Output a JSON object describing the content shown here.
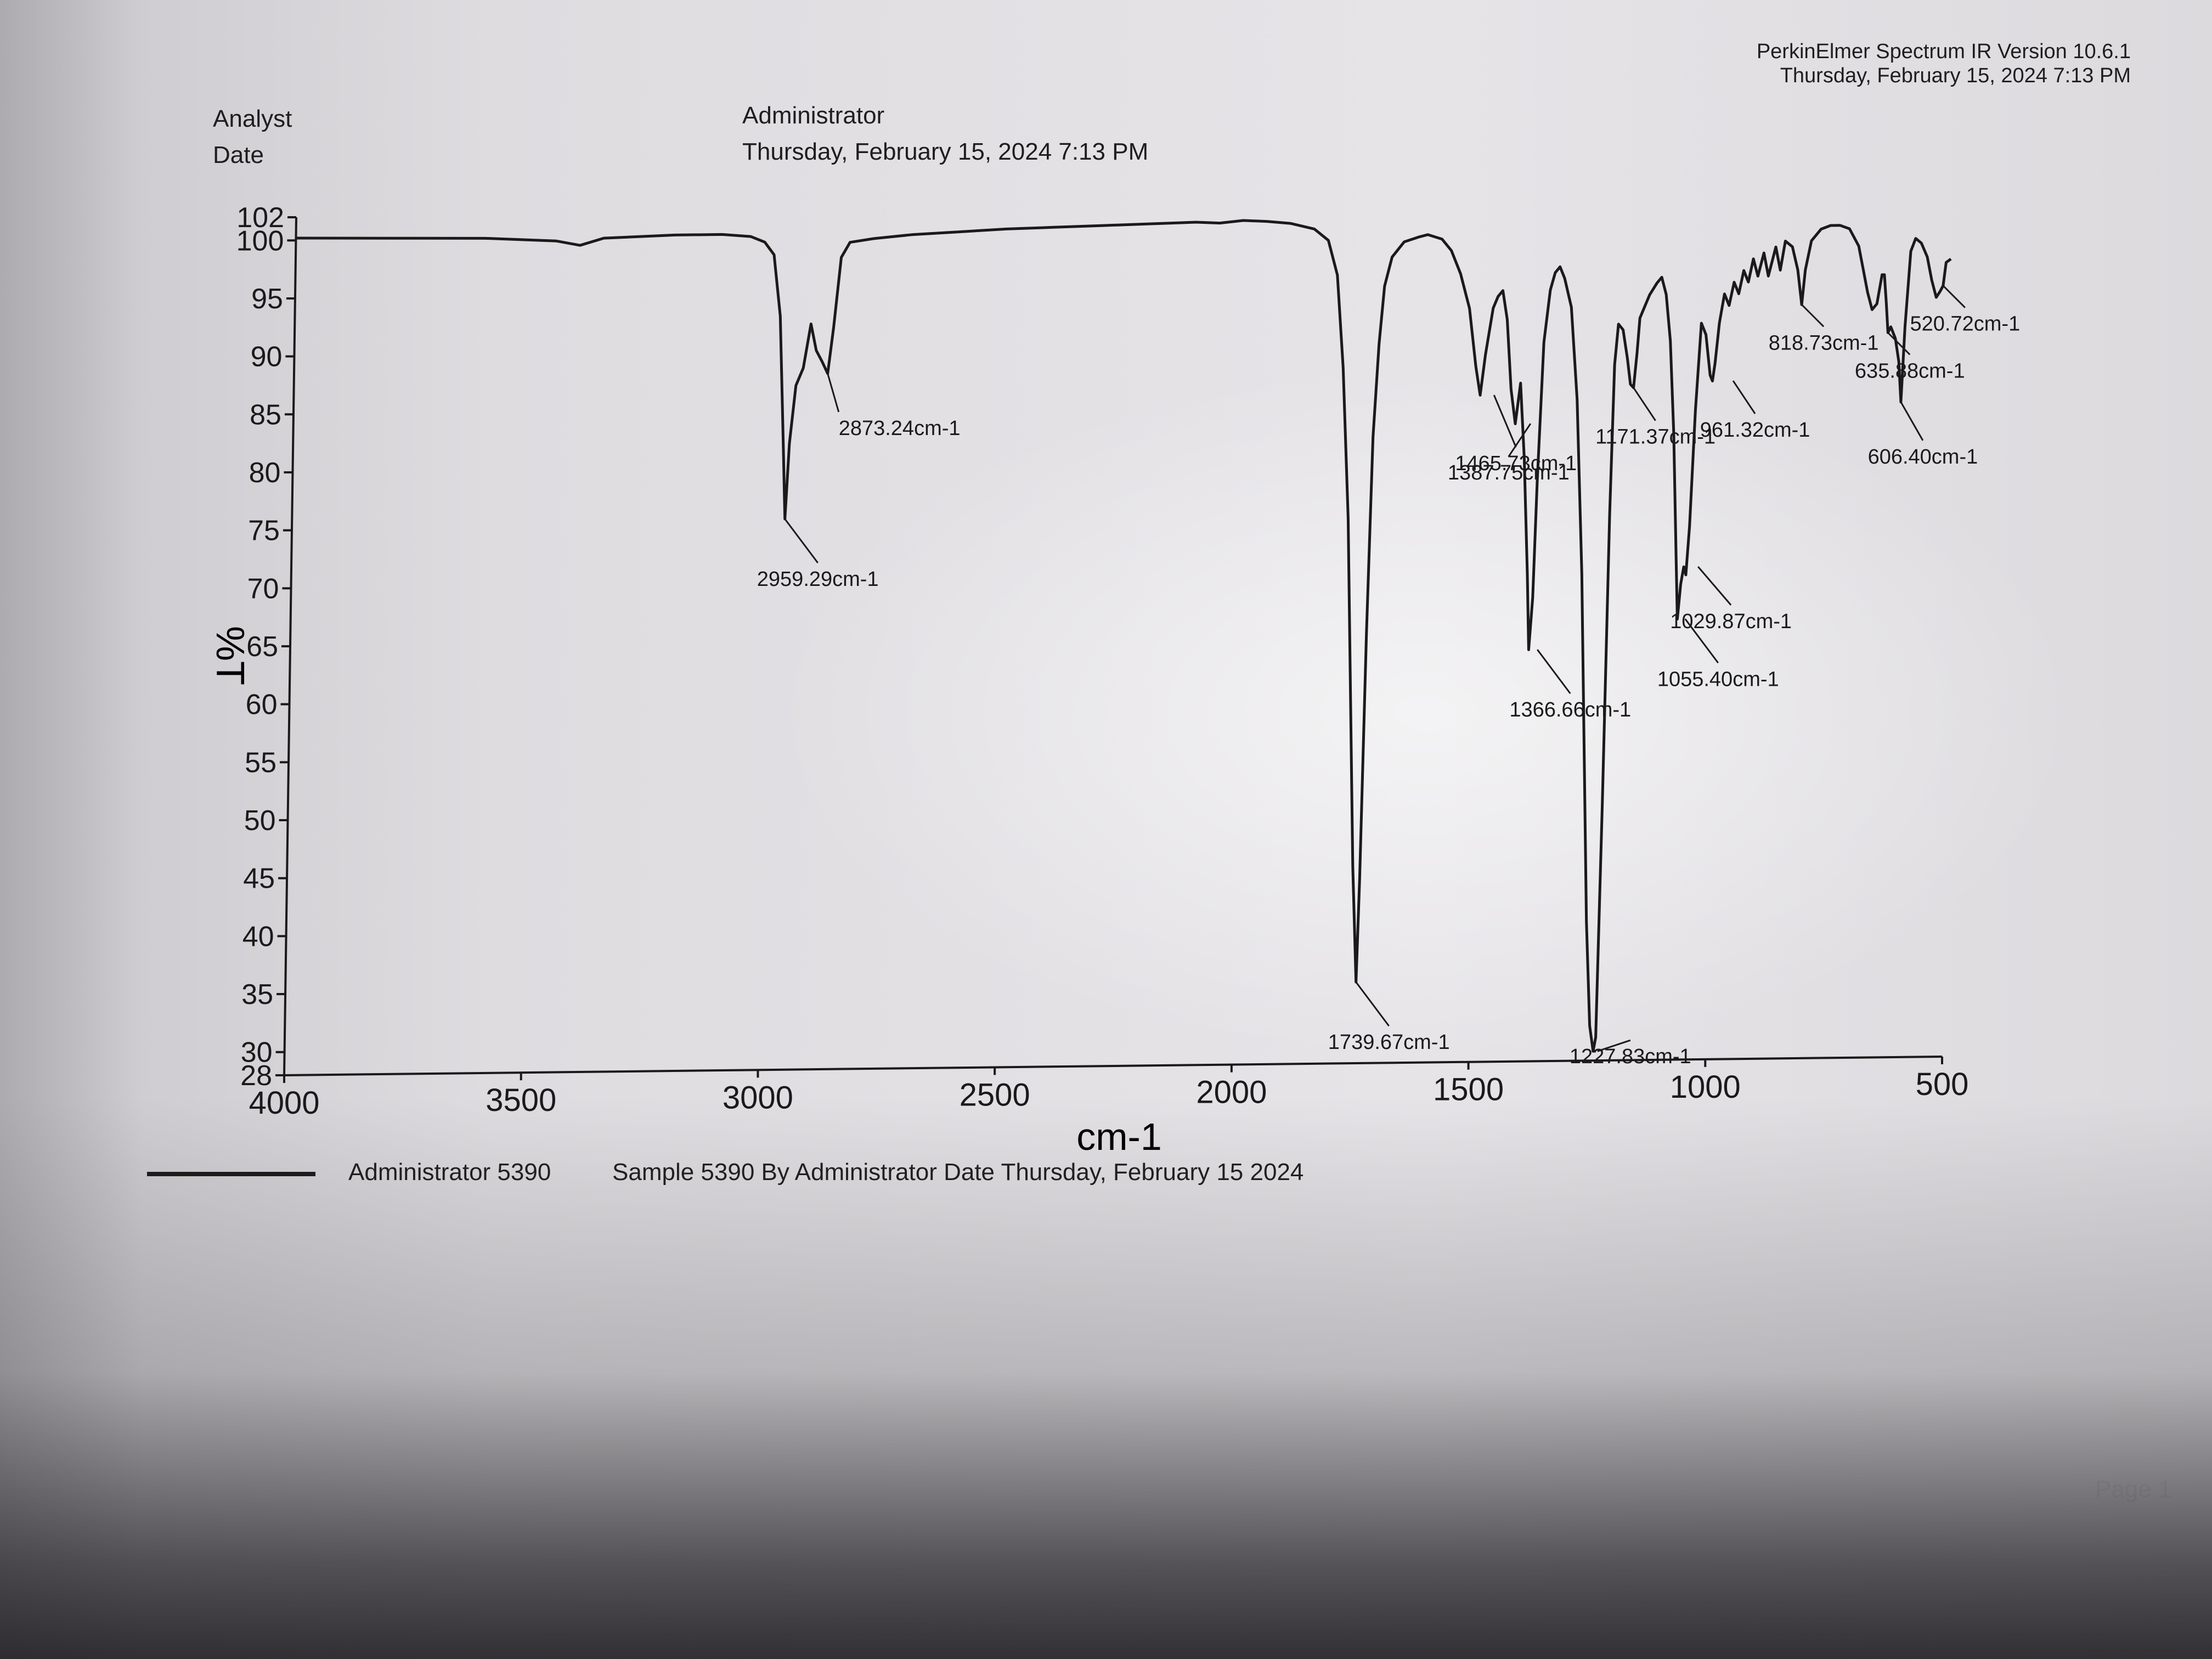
{
  "header": {
    "software": "PerkinElmer Spectrum IR Version 10.6.1",
    "software_date": "Thursday, February 15, 2024 7:13 PM",
    "analyst_label": "Analyst",
    "analyst_value": "Administrator",
    "date_label": "Date",
    "date_value": "Thursday, February 15, 2024 7:13 PM"
  },
  "legend": {
    "name": "Administrator 5390",
    "description": "Sample 5390 By Administrator Date Thursday, February 15 2024"
  },
  "footer": {
    "page": "Page 1"
  },
  "colors": {
    "line": "#1a1a1a",
    "paper": "#e2e0e3"
  },
  "chart_data": {
    "type": "line",
    "title": "",
    "xlabel": "cm-1",
    "ylabel": "%T",
    "xlim": [
      4000,
      500
    ],
    "ylim": [
      28,
      102
    ],
    "x_reversed": true,
    "grid": false,
    "x_ticks": [
      4000,
      3500,
      3000,
      2500,
      2000,
      1500,
      1000,
      500
    ],
    "y_ticks": [
      28,
      30,
      35,
      40,
      45,
      50,
      55,
      60,
      65,
      70,
      75,
      80,
      85,
      90,
      95,
      100,
      102
    ],
    "series": [
      {
        "name": "Administrator 5390",
        "points": [
          [
            4000,
            100.2
          ],
          [
            3800,
            100.1
          ],
          [
            3600,
            100.0
          ],
          [
            3450,
            99.7
          ],
          [
            3400,
            99.3
          ],
          [
            3350,
            99.9
          ],
          [
            3200,
            100.1
          ],
          [
            3100,
            100.1
          ],
          [
            3040,
            99.9
          ],
          [
            3010,
            99.4
          ],
          [
            2990,
            98.3
          ],
          [
            2975,
            93.0
          ],
          [
            2965,
            82.0
          ],
          [
            2959.29,
            75.5
          ],
          [
            2952,
            82.0
          ],
          [
            2940,
            87.0
          ],
          [
            2925,
            88.5
          ],
          [
            2910,
            92.3
          ],
          [
            2898,
            90.0
          ],
          [
            2885,
            89.0
          ],
          [
            2873.24,
            88.0
          ],
          [
            2862,
            92.0
          ],
          [
            2848,
            98.0
          ],
          [
            2830,
            99.3
          ],
          [
            2780,
            99.6
          ],
          [
            2700,
            99.9
          ],
          [
            2600,
            100.1
          ],
          [
            2500,
            100.3
          ],
          [
            2400,
            100.4
          ],
          [
            2300,
            100.5
          ],
          [
            2200,
            100.6
          ],
          [
            2100,
            100.7
          ],
          [
            2050,
            100.6
          ],
          [
            2000,
            100.8
          ],
          [
            1950,
            100.7
          ],
          [
            1900,
            100.5
          ],
          [
            1850,
            100.0
          ],
          [
            1820,
            99.0
          ],
          [
            1800,
            96.0
          ],
          [
            1785,
            88.0
          ],
          [
            1770,
            75.0
          ],
          [
            1760,
            60.0
          ],
          [
            1750,
            45.0
          ],
          [
            1739.67,
            35.0
          ],
          [
            1735,
            44.0
          ],
          [
            1728,
            65.0
          ],
          [
            1720,
            82.0
          ],
          [
            1710,
            90.0
          ],
          [
            1700,
            95.0
          ],
          [
            1685,
            97.5
          ],
          [
            1660,
            98.8
          ],
          [
            1630,
            99.2
          ],
          [
            1610,
            99.4
          ],
          [
            1580,
            99.0
          ],
          [
            1560,
            98.0
          ],
          [
            1540,
            96.0
          ],
          [
            1520,
            93.0
          ],
          [
            1505,
            88.0
          ],
          [
            1495,
            85.5
          ],
          [
            1485,
            89.0
          ],
          [
            1470,
            93.0
          ],
          [
            1460,
            94.0
          ],
          [
            1450,
            94.5
          ],
          [
            1440,
            92.0
          ],
          [
            1430,
            86.0
          ],
          [
            1420,
            83.0
          ],
          [
            1410,
            86.5
          ],
          [
            1400,
            80.0
          ],
          [
            1390,
            70.0
          ],
          [
            1385,
            63.5
          ],
          [
            1378,
            68.0
          ],
          [
            1372,
            78.0
          ],
          [
            1362,
            90.0
          ],
          [
            1350,
            94.5
          ],
          [
            1340,
            96.0
          ],
          [
            1330,
            96.5
          ],
          [
            1320,
            95.5
          ],
          [
            1305,
            93.0
          ],
          [
            1290,
            85.0
          ],
          [
            1275,
            70.0
          ],
          [
            1265,
            55.0
          ],
          [
            1255,
            40.0
          ],
          [
            1245,
            31.0
          ],
          [
            1237,
            28.8
          ],
          [
            1232,
            30.0
          ],
          [
            1225,
            50.0
          ],
          [
            1218,
            75.0
          ],
          [
            1212,
            88.0
          ],
          [
            1205,
            91.5
          ],
          [
            1195,
            91.0
          ],
          [
            1185,
            88.5
          ],
          [
            1178,
            86.3
          ],
          [
            1171.37,
            86.0
          ],
          [
            1165,
            89.0
          ],
          [
            1160,
            92.0
          ],
          [
            1150,
            93.0
          ],
          [
            1140,
            94.0
          ],
          [
            1125,
            95.0
          ],
          [
            1115,
            95.5
          ],
          [
            1105,
            94.0
          ],
          [
            1095,
            90.0
          ],
          [
            1085,
            82.0
          ],
          [
            1077,
            72.0
          ],
          [
            1072,
            66.0
          ],
          [
            1066,
            69.0
          ],
          [
            1060,
            70.5
          ],
          [
            1055.4,
            69.8
          ],
          [
            1049,
            74.0
          ],
          [
            1040,
            84.0
          ],
          [
            1030,
            91.5
          ],
          [
            1020,
            90.5
          ],
          [
            1010,
            87.0
          ],
          [
            1005,
            86.5
          ],
          [
            1000,
            88.0
          ],
          [
            992,
            91.5
          ],
          [
            982,
            94.0
          ],
          [
            972,
            93.0
          ],
          [
            962,
            95.0
          ],
          [
            952,
            94.0
          ],
          [
            942,
            96.0
          ],
          [
            932,
            95.0
          ],
          [
            922,
            97.0
          ],
          [
            912,
            95.5
          ],
          [
            900,
            97.5
          ],
          [
            890,
            95.5
          ],
          [
            875,
            98.0
          ],
          [
            865,
            96.0
          ],
          [
            855,
            98.5
          ],
          [
            840,
            98.0
          ],
          [
            828,
            96.0
          ],
          [
            818.73,
            93.0
          ],
          [
            812,
            96.0
          ],
          [
            800,
            98.5
          ],
          [
            780,
            99.5
          ],
          [
            760,
            99.8
          ],
          [
            740,
            99.8
          ],
          [
            720,
            99.5
          ],
          [
            700,
            98.0
          ],
          [
            690,
            96.0
          ],
          [
            680,
            94.0
          ],
          [
            670,
            92.5
          ],
          [
            660,
            93.0
          ],
          [
            650,
            95.5
          ],
          [
            645,
            95.5
          ],
          [
            640,
            93.0
          ],
          [
            635.88,
            90.5
          ],
          [
            630,
            91.0
          ],
          [
            620,
            90.0
          ],
          [
            612,
            88.0
          ],
          [
            606.4,
            84.5
          ],
          [
            600,
            91.0
          ],
          [
            590,
            97.5
          ],
          [
            580,
            98.6
          ],
          [
            568,
            98.2
          ],
          [
            555,
            97.0
          ],
          [
            545,
            95.0
          ],
          [
            535,
            93.5
          ],
          [
            527,
            94.0
          ],
          [
            520.72,
            94.5
          ],
          [
            515,
            96.5
          ],
          [
            505,
            96.8
          ]
        ]
      }
    ],
    "annotations": [
      {
        "x": 2959.29,
        "y": 75.5,
        "label": "2959.29cm-1"
      },
      {
        "x": 2873.24,
        "y": 88.0,
        "label": "2873.24cm-1"
      },
      {
        "x": 1739.67,
        "y": 35.0,
        "label": "1739.67cm-1"
      },
      {
        "x": 1465.73,
        "y": 85.5,
        "label": "1465.73cm-1"
      },
      {
        "x": 1387.75,
        "y": 83.0,
        "label": "1387.75cm-1"
      },
      {
        "x": 1366.66,
        "y": 63.5,
        "label": "1366.66cm-1"
      },
      {
        "x": 1227.83,
        "y": 28.8,
        "label": "1227.83cm-1"
      },
      {
        "x": 1171.37,
        "y": 86.0,
        "label": "1171.37cm-1"
      },
      {
        "x": 1055.4,
        "y": 66.0,
        "label": "1055.40cm-1"
      },
      {
        "x": 1029.87,
        "y": 70.5,
        "label": "1029.87cm-1"
      },
      {
        "x": 961.32,
        "y": 86.5,
        "label": "961.32cm-1"
      },
      {
        "x": 818.73,
        "y": 93.0,
        "label": "818.73cm-1"
      },
      {
        "x": 635.88,
        "y": 90.5,
        "label": "635.88cm-1"
      },
      {
        "x": 606.4,
        "y": 84.5,
        "label": "606.40cm-1"
      },
      {
        "x": 520.72,
        "y": 94.5,
        "label": "520.72cm-1"
      }
    ]
  }
}
